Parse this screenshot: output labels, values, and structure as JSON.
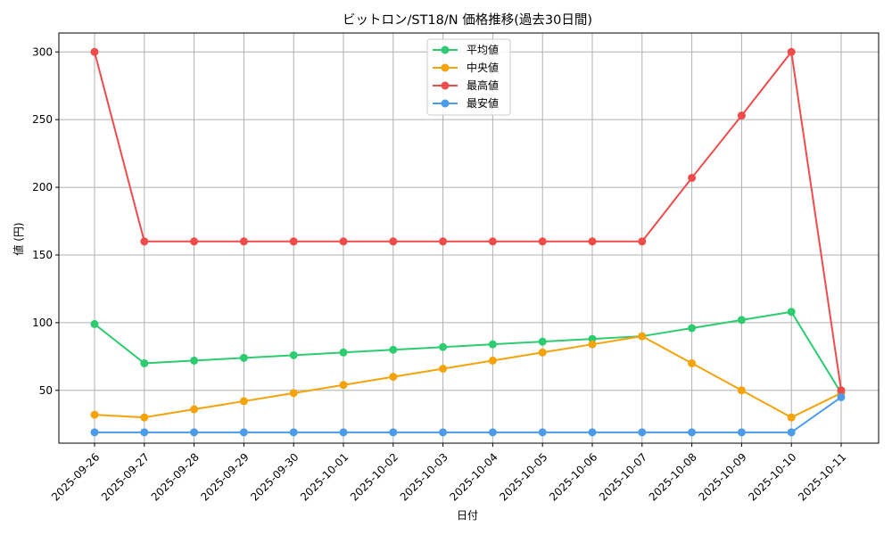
{
  "chart_data": {
    "type": "line",
    "title": "ビットロン/ST18/N 価格推移(過去30日間)",
    "xlabel": "日付",
    "ylabel": "値 (円)",
    "categories": [
      "2025-09-26",
      "2025-09-27",
      "2025-09-28",
      "2025-09-29",
      "2025-09-30",
      "2025-10-01",
      "2025-10-02",
      "2025-10-03",
      "2025-10-04",
      "2025-10-05",
      "2025-10-06",
      "2025-10-07",
      "2025-10-08",
      "2025-10-09",
      "2025-10-10",
      "2025-10-11"
    ],
    "ylim": [
      11,
      314
    ],
    "yticks": [
      50,
      100,
      150,
      200,
      250,
      300
    ],
    "grid": true,
    "legend_position": "top-center",
    "series": [
      {
        "name": "平均値",
        "color": "#2ecc71",
        "values": [
          99,
          70,
          72,
          74,
          76,
          78,
          80,
          82,
          84,
          86,
          88,
          90,
          96,
          102,
          108,
          48
        ]
      },
      {
        "name": "中央値",
        "color": "#f5a30b",
        "values": [
          32,
          30,
          36,
          42,
          48,
          54,
          60,
          66,
          72,
          78,
          84,
          90,
          70,
          50,
          30,
          48
        ]
      },
      {
        "name": "最高値",
        "color": "#ef4b4b",
        "values": [
          300,
          160,
          160,
          160,
          160,
          160,
          160,
          160,
          160,
          160,
          160,
          160,
          207,
          253,
          300,
          50
        ]
      },
      {
        "name": "最安値",
        "color": "#4c9be8",
        "values": [
          19,
          19,
          19,
          19,
          19,
          19,
          19,
          19,
          19,
          19,
          19,
          19,
          19,
          19,
          19,
          45
        ]
      }
    ]
  }
}
